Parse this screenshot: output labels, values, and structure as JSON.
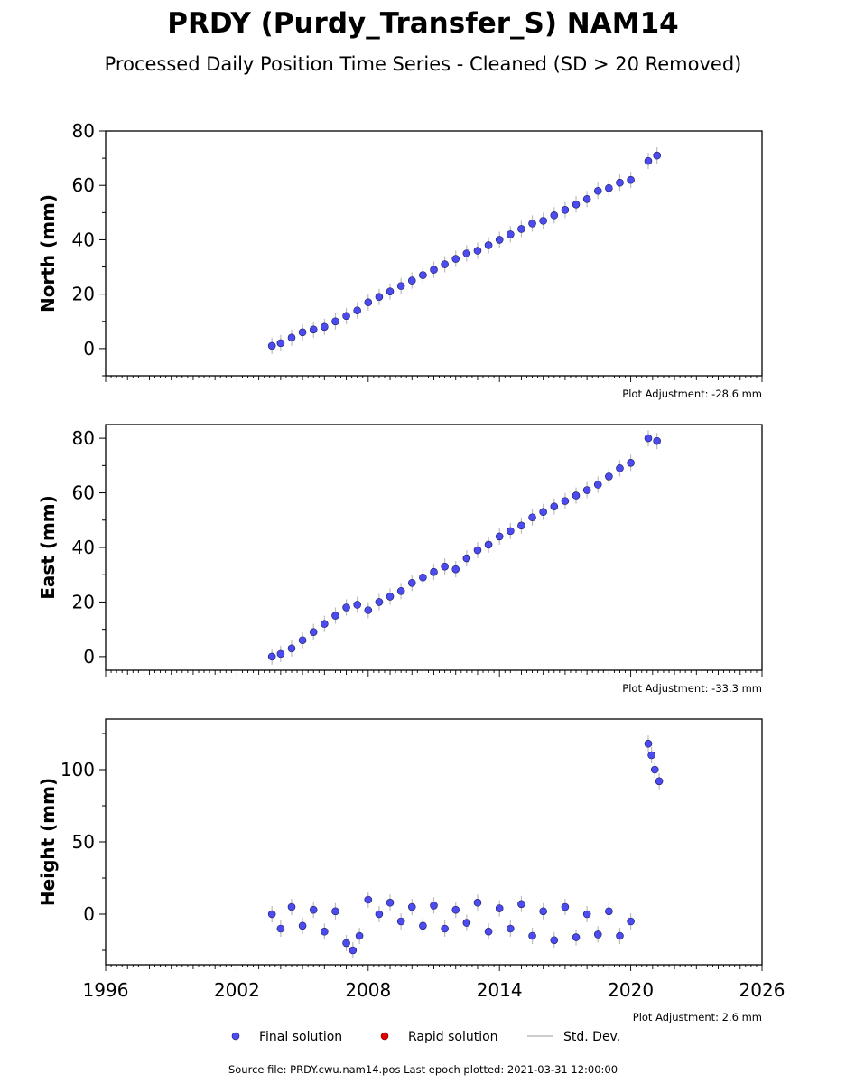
{
  "title": "PRDY (Purdy_Transfer_S) NAM14",
  "subtitle": "Processed Daily Position Time Series - Cleaned (SD > 20 Removed)",
  "footer": "Source file: PRDY.cwu.nam14.pos  Last epoch plotted: 2021-03-31 12:00:00",
  "legend": {
    "final": "Final solution",
    "rapid": "Rapid solution",
    "std": "Std. Dev."
  },
  "colors": {
    "final": "#4b4bf0",
    "rapid": "#dd0000",
    "std": "#bbbbbb"
  },
  "chart_data": [
    {
      "type": "scatter",
      "ylabel": "North (mm)",
      "adjustment": "Plot Adjustment: -28.6 mm",
      "xlim": [
        1996,
        2026
      ],
      "ylim": [
        -10,
        80
      ],
      "yticks": [
        0,
        20,
        40,
        60,
        80
      ],
      "xticks": [
        1996,
        2002,
        2008,
        2014,
        2020,
        2026
      ],
      "series": [
        {
          "x": [
            2003.6,
            2004.0,
            2004.5,
            2005.0,
            2005.5,
            2006.0,
            2006.5,
            2007.0,
            2007.5,
            2008.0,
            2008.5,
            2009.0,
            2009.5,
            2010.0,
            2010.5,
            2011.0,
            2011.5,
            2012.0,
            2012.5,
            2013.0,
            2013.5,
            2014.0,
            2014.5,
            2015.0,
            2015.5,
            2016.0,
            2016.5,
            2017.0,
            2017.5,
            2018.0,
            2018.5,
            2019.0,
            2019.5,
            2020.0,
            2020.8,
            2021.2
          ],
          "y": [
            1,
            2,
            4,
            6,
            7,
            8,
            10,
            12,
            14,
            17,
            19,
            21,
            23,
            25,
            27,
            29,
            31,
            33,
            35,
            36,
            38,
            40,
            42,
            44,
            46,
            47,
            49,
            51,
            53,
            55,
            58,
            59,
            61,
            62,
            69,
            71
          ]
        }
      ]
    },
    {
      "type": "scatter",
      "ylabel": "East (mm)",
      "adjustment": "Plot Adjustment: -33.3 mm",
      "xlim": [
        1996,
        2026
      ],
      "ylim": [
        -5,
        85
      ],
      "yticks": [
        0,
        20,
        40,
        60,
        80
      ],
      "xticks": [
        1996,
        2002,
        2008,
        2014,
        2020,
        2026
      ],
      "series": [
        {
          "x": [
            2003.6,
            2004.0,
            2004.5,
            2005.0,
            2005.5,
            2006.0,
            2006.5,
            2007.0,
            2007.5,
            2008.0,
            2008.5,
            2009.0,
            2009.5,
            2010.0,
            2010.5,
            2011.0,
            2011.5,
            2012.0,
            2012.5,
            2013.0,
            2013.5,
            2014.0,
            2014.5,
            2015.0,
            2015.5,
            2016.0,
            2016.5,
            2017.0,
            2017.5,
            2018.0,
            2018.5,
            2019.0,
            2019.5,
            2020.0,
            2020.8,
            2021.2
          ],
          "y": [
            0,
            1,
            3,
            6,
            9,
            12,
            15,
            18,
            19,
            17,
            20,
            22,
            24,
            27,
            29,
            31,
            33,
            32,
            36,
            39,
            41,
            44,
            46,
            48,
            51,
            53,
            55,
            57,
            59,
            61,
            63,
            66,
            69,
            71,
            80,
            79
          ]
        }
      ]
    },
    {
      "type": "scatter",
      "ylabel": "Height (mm)",
      "adjustment": "Plot Adjustment: 2.6 mm",
      "xlim": [
        1996,
        2026
      ],
      "ylim": [
        -35,
        135
      ],
      "yticks": [
        0,
        50,
        100
      ],
      "xticks": [
        1996,
        2002,
        2008,
        2014,
        2020,
        2026
      ],
      "series": [
        {
          "x": [
            2003.6,
            2004.0,
            2004.5,
            2005.0,
            2005.5,
            2006.0,
            2006.5,
            2007.0,
            2007.3,
            2007.6,
            2008.0,
            2008.5,
            2009.0,
            2009.5,
            2010.0,
            2010.5,
            2011.0,
            2011.5,
            2012.0,
            2012.5,
            2013.0,
            2013.5,
            2014.0,
            2014.5,
            2015.0,
            2015.5,
            2016.0,
            2016.5,
            2017.0,
            2017.5,
            2018.0,
            2018.5,
            2019.0,
            2019.5,
            2020.0,
            2020.8,
            2020.95,
            2021.1,
            2021.3
          ],
          "y": [
            0,
            -10,
            5,
            -8,
            3,
            -12,
            2,
            -20,
            -25,
            -15,
            10,
            0,
            8,
            -5,
            5,
            -8,
            6,
            -10,
            3,
            -6,
            8,
            -12,
            4,
            -10,
            7,
            -15,
            2,
            -18,
            5,
            -16,
            0,
            -14,
            2,
            -15,
            -5,
            118,
            110,
            100,
            92
          ]
        }
      ]
    }
  ]
}
